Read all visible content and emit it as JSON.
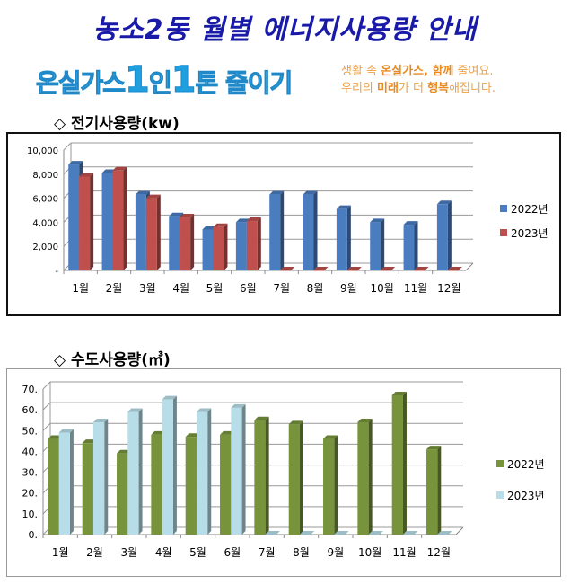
{
  "header": {
    "title": "농소2동 월별 에너지사용량 안내",
    "slogan_parts": [
      "온실가스",
      "1",
      "인",
      "1",
      "톤 줄이기"
    ],
    "sub_line1": [
      "생활 속 ",
      "온실가스, 함께",
      " 줄여요."
    ],
    "sub_line2": [
      "우리의 ",
      "미래",
      "가 더 ",
      "행복",
      "해집니다."
    ]
  },
  "sections": {
    "electric": "◇ 전기사용량(kw)",
    "water": "◇ 수도사용량(㎥)"
  },
  "chart_data": [
    {
      "type": "bar",
      "title": "전기사용량(kw)",
      "categories": [
        "1월",
        "2월",
        "3월",
        "4월",
        "5월",
        "6월",
        "7월",
        "8월",
        "9월",
        "10월",
        "11월",
        "12월"
      ],
      "series": [
        {
          "name": "2022년",
          "color": "#4a7cc0",
          "values": [
            8800,
            8100,
            6300,
            4500,
            3400,
            4000,
            6300,
            6300,
            5100,
            4000,
            3800,
            5500
          ]
        },
        {
          "name": "2023년",
          "color": "#c0504d",
          "values": [
            7800,
            8300,
            6000,
            4400,
            3600,
            4100,
            0,
            0,
            0,
            0,
            0,
            0
          ]
        }
      ],
      "ylim": [
        0,
        10000
      ],
      "yticks": [
        "-",
        "2,000",
        "4,000",
        "6,000",
        "8,000",
        "10,000"
      ],
      "legend": "right",
      "grid": true
    },
    {
      "type": "bar",
      "title": "수도사용량(㎥)",
      "categories": [
        "1월",
        "2월",
        "3월",
        "4월",
        "5월",
        "6월",
        "7월",
        "8월",
        "9월",
        "10월",
        "11월",
        "12월"
      ],
      "series": [
        {
          "name": "2022년",
          "color": "#77933c",
          "values": [
            46,
            44,
            39,
            48,
            47,
            48,
            55,
            53,
            46,
            54,
            67,
            41
          ]
        },
        {
          "name": "2023년",
          "color": "#b7dee8",
          "values": [
            49,
            54,
            59,
            65,
            59,
            61,
            0,
            0,
            0,
            0,
            0,
            0
          ]
        }
      ],
      "ylim": [
        0,
        70
      ],
      "yticks": [
        "0.",
        "10.",
        "20.",
        "30.",
        "40.",
        "50.",
        "60.",
        "70."
      ],
      "legend": "right",
      "grid": true
    }
  ]
}
